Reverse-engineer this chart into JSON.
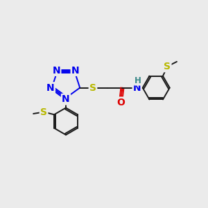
{
  "background_color": "#ebebeb",
  "bond_color": "#1a1a1a",
  "N_color": "#0000ee",
  "S_color": "#b8b800",
  "O_color": "#dd0000",
  "H_color": "#3a8888",
  "figsize": [
    3.0,
    3.0
  ],
  "dpi": 100,
  "xlim": [
    0,
    12
  ],
  "ylim": [
    0,
    12
  ]
}
